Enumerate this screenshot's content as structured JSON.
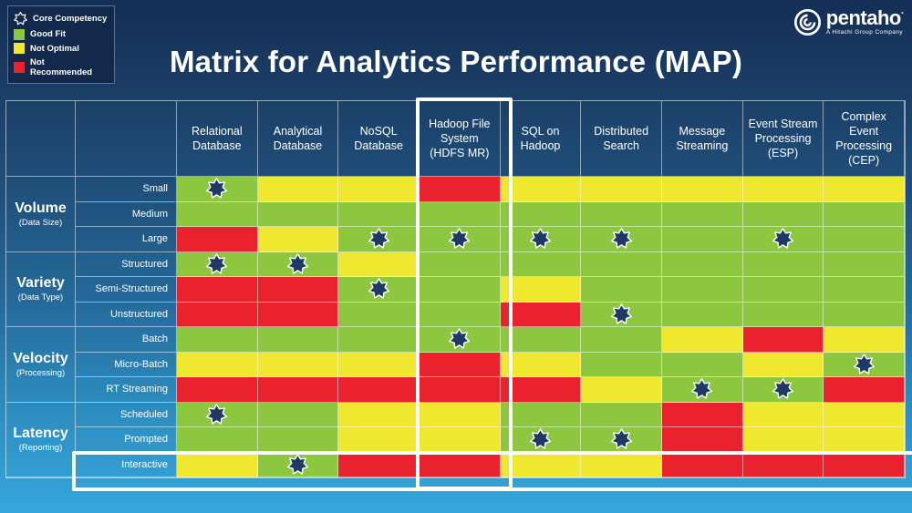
{
  "page": {
    "title": "Matrix for Analytics Performance (MAP)"
  },
  "legend": {
    "core_competency_label": "Core Competency",
    "good_fit_label": "Good Fit",
    "not_optimal_label": "Not Optimal",
    "not_recommended_label": "Not Recommended"
  },
  "logo": {
    "brand": "pentaho",
    "mark": "·",
    "tagline": "A Hitachi Group Company"
  },
  "colors": {
    "good_fit": "#8DC63F",
    "not_optimal": "#F0E72F",
    "not_recommended": "#E9222E",
    "star_fill": "#1E3A64",
    "highlight_frame": "#FFFFFF",
    "background_top": "#142E55",
    "background_bottom": "#36A7DE"
  },
  "chart_data": {
    "type": "heatmap",
    "title": "Matrix for Analytics Performance (MAP)",
    "value_legend": [
      {
        "code": "G",
        "label": "Good Fit"
      },
      {
        "code": "Y",
        "label": "Not Optimal"
      },
      {
        "code": "R",
        "label": "Not Recommended"
      }
    ],
    "star_meaning": "Core Competency",
    "columns": [
      "Relational Database",
      "Analytical Database",
      "NoSQL Database",
      "Hadoop File System (HDFS MR)",
      "SQL on Hadoop",
      "Distributed Search",
      "Message Streaming",
      "Event Stream Processing (ESP)",
      "Complex Event Processing (CEP)"
    ],
    "highlights": {
      "column": "Hadoop File System (HDFS MR)",
      "row": "Interactive"
    },
    "row_groups": [
      {
        "name": "Volume",
        "qualifier": "(Data Size)",
        "rows": [
          {
            "label": "Small",
            "cells": [
              "G*",
              "Y",
              "Y",
              "R",
              "Y",
              "Y",
              "Y",
              "Y",
              "Y"
            ]
          },
          {
            "label": "Medium",
            "cells": [
              "G",
              "G",
              "G",
              "G",
              "G",
              "G",
              "G",
              "G",
              "G"
            ]
          },
          {
            "label": "Large",
            "cells": [
              "R",
              "Y",
              "G*",
              "G*",
              "G*",
              "G*",
              "G",
              "G*",
              "G"
            ]
          }
        ]
      },
      {
        "name": "Variety",
        "qualifier": "(Data Type)",
        "rows": [
          {
            "label": "Structured",
            "cells": [
              "G*",
              "G*",
              "Y",
              "G",
              "G",
              "G",
              "G",
              "G",
              "G"
            ]
          },
          {
            "label": "Semi-Structured",
            "cells": [
              "R",
              "R",
              "G*",
              "G",
              "Y",
              "G",
              "G",
              "G",
              "G"
            ]
          },
          {
            "label": "Unstructured",
            "cells": [
              "R",
              "R",
              "G",
              "G",
              "R",
              "G*",
              "G",
              "G",
              "G"
            ]
          }
        ]
      },
      {
        "name": "Velocity",
        "qualifier": "(Processing)",
        "rows": [
          {
            "label": "Batch",
            "cells": [
              "G",
              "G",
              "G",
              "G*",
              "G",
              "G",
              "Y",
              "R",
              "Y"
            ]
          },
          {
            "label": "Micro-Batch",
            "cells": [
              "Y",
              "Y",
              "Y",
              "R",
              "Y",
              "G",
              "G",
              "Y",
              "G*"
            ]
          },
          {
            "label": "RT Streaming",
            "cells": [
              "R",
              "R",
              "R",
              "R",
              "R",
              "Y",
              "G*",
              "G*",
              "R"
            ]
          }
        ]
      },
      {
        "name": "Latency",
        "qualifier": "(Reporting)",
        "rows": [
          {
            "label": "Scheduled",
            "cells": [
              "G*",
              "G",
              "Y",
              "Y",
              "G",
              "G",
              "R",
              "Y",
              "Y"
            ]
          },
          {
            "label": "Prompted",
            "cells": [
              "G",
              "G",
              "Y",
              "Y",
              "G*",
              "G*",
              "R",
              "Y",
              "Y"
            ]
          },
          {
            "label": "Interactive",
            "cells": [
              "Y",
              "G*",
              "R",
              "R",
              "Y",
              "Y",
              "R",
              "R",
              "R"
            ]
          }
        ]
      }
    ]
  }
}
